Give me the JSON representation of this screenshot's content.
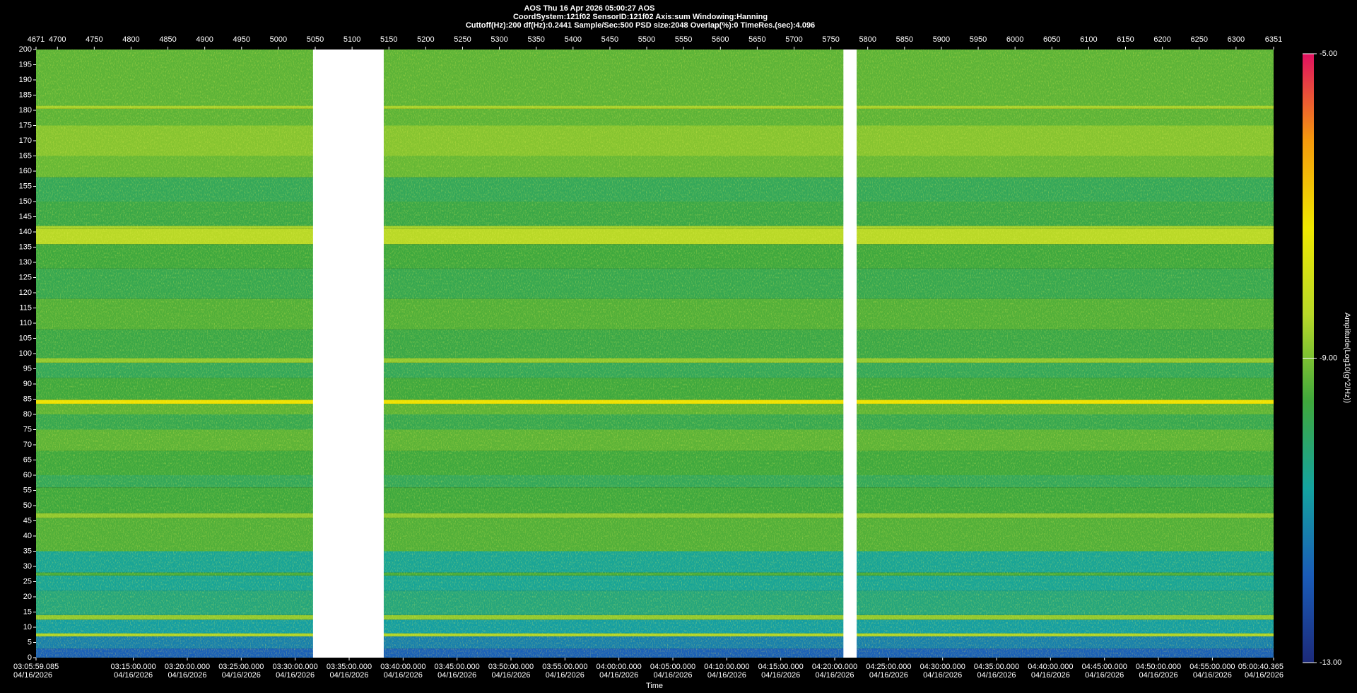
{
  "chart_data": {
    "type": "spectrogram",
    "title": "AOS  Thu 16 Apr 2026 05:00:27  AOS",
    "subtitle": "CoordSystem:121f02   SensorID:121f02   Axis:sum   Windowing:Hanning",
    "settings_line": "Cuttoff(Hz):200     df(Hz):0.2441     Sample/Sec:500     PSD size:2048     Overlap(%):0     TimeRes.(sec):4.096",
    "xlim": [
      4671,
      6351
    ],
    "xticks": [
      4671,
      4700,
      4750,
      4800,
      4850,
      4900,
      4950,
      5000,
      5050,
      5100,
      5150,
      5200,
      5250,
      5300,
      5350,
      5400,
      5450,
      5500,
      5550,
      5600,
      5650,
      5700,
      5750,
      5800,
      5850,
      5900,
      5950,
      6000,
      6050,
      6100,
      6150,
      6200,
      6250,
      6300,
      6351
    ],
    "ylim": [
      0,
      200
    ],
    "yticks": [
      0,
      5,
      10,
      15,
      20,
      25,
      30,
      35,
      40,
      45,
      50,
      55,
      60,
      65,
      70,
      75,
      80,
      85,
      90,
      95,
      100,
      105,
      110,
      115,
      120,
      125,
      130,
      135,
      140,
      145,
      150,
      155,
      160,
      165,
      170,
      175,
      180,
      185,
      190,
      195,
      200
    ],
    "x_label": "Time",
    "tlim": [
      "03:05:59.085",
      "05:00:40.365"
    ],
    "time_ticks": [
      {
        "time": "03:05:59.085",
        "date": "04/16/2026"
      },
      {
        "time": "03:15:00.000",
        "date": "04/16/2026"
      },
      {
        "time": "03:20:00.000",
        "date": "04/16/2026"
      },
      {
        "time": "03:25:00.000",
        "date": "04/16/2026"
      },
      {
        "time": "03:30:00.000",
        "date": "04/16/2026"
      },
      {
        "time": "03:35:00.000",
        "date": "04/16/2026"
      },
      {
        "time": "03:40:00.000",
        "date": "04/16/2026"
      },
      {
        "time": "03:45:00.000",
        "date": "04/16/2026"
      },
      {
        "time": "03:50:00.000",
        "date": "04/16/2026"
      },
      {
        "time": "03:55:00.000",
        "date": "04/16/2026"
      },
      {
        "time": "04:00:00.000",
        "date": "04/16/2026"
      },
      {
        "time": "04:05:00.000",
        "date": "04/16/2026"
      },
      {
        "time": "04:10:00.000",
        "date": "04/16/2026"
      },
      {
        "time": "04:15:00.000",
        "date": "04/16/2026"
      },
      {
        "time": "04:20:00.000",
        "date": "04/16/2026"
      },
      {
        "time": "04:25:00.000",
        "date": "04/16/2026"
      },
      {
        "time": "04:30:00.000",
        "date": "04/16/2026"
      },
      {
        "time": "04:35:00.000",
        "date": "04/16/2026"
      },
      {
        "time": "04:40:00.000",
        "date": "04/16/2026"
      },
      {
        "time": "04:45:00.000",
        "date": "04/16/2026"
      },
      {
        "time": "04:50:00.000",
        "date": "04/16/2026"
      },
      {
        "time": "04:55:00.000",
        "date": "04/16/2026"
      },
      {
        "time": "05:00:40.365",
        "date": "04/16/2026"
      }
    ],
    "gaps": [
      {
        "from": 5047,
        "to": 5143
      },
      {
        "from": 5767,
        "to": 5785
      }
    ],
    "bands": [
      {
        "from": 0,
        "to": 3,
        "value": -11.8
      },
      {
        "from": 3,
        "to": 7,
        "value": -11.3
      },
      {
        "from": 7,
        "to": 8,
        "value": -8.5
      },
      {
        "from": 8,
        "to": 12.5,
        "value": -10.8
      },
      {
        "from": 12.5,
        "to": 14,
        "value": -8.8
      },
      {
        "from": 14,
        "to": 22,
        "value": -10.3
      },
      {
        "from": 22,
        "to": 27,
        "value": -10.6
      },
      {
        "from": 27,
        "to": 28,
        "value": -9.5
      },
      {
        "from": 28,
        "to": 35,
        "value": -10.6
      },
      {
        "from": 35,
        "to": 46,
        "value": -9.4
      },
      {
        "from": 46,
        "to": 47.5,
        "value": -8.8
      },
      {
        "from": 47.5,
        "to": 56,
        "value": -9.6
      },
      {
        "from": 56,
        "to": 60,
        "value": -9.9
      },
      {
        "from": 60,
        "to": 68,
        "value": -9.6
      },
      {
        "from": 68,
        "to": 75,
        "value": -9.3
      },
      {
        "from": 75,
        "to": 80,
        "value": -9.8
      },
      {
        "from": 80,
        "to": 83.5,
        "value": -9.3
      },
      {
        "from": 83.5,
        "to": 84.8,
        "value": -7.2
      },
      {
        "from": 84.8,
        "to": 92,
        "value": -9.6
      },
      {
        "from": 92,
        "to": 97,
        "value": -9.9
      },
      {
        "from": 97,
        "to": 98.5,
        "value": -8.8
      },
      {
        "from": 98.5,
        "to": 108,
        "value": -9.7
      },
      {
        "from": 108,
        "to": 118,
        "value": -9.4
      },
      {
        "from": 118,
        "to": 128,
        "value": -9.8
      },
      {
        "from": 128,
        "to": 136,
        "value": -9.6
      },
      {
        "from": 136,
        "to": 141,
        "value": -8.4
      },
      {
        "from": 141,
        "to": 142,
        "value": -8.6
      },
      {
        "from": 142,
        "to": 150,
        "value": -9.7
      },
      {
        "from": 150,
        "to": 158,
        "value": -9.9
      },
      {
        "from": 158,
        "to": 165,
        "value": -9.2
      },
      {
        "from": 165,
        "to": 175,
        "value": -8.9
      },
      {
        "from": 175,
        "to": 180.5,
        "value": -9.3
      },
      {
        "from": 180.5,
        "to": 181.5,
        "value": -8.6
      },
      {
        "from": 181.5,
        "to": 200,
        "value": -9.3
      }
    ],
    "clim": [
      -13,
      -5
    ],
    "cticks": [
      {
        "value": -5,
        "label": "-5.00"
      },
      {
        "value": -9,
        "label": "-9.00"
      },
      {
        "value": -13,
        "label": "-13.00"
      }
    ],
    "colorbar_label": "Amplitude(Log10(g^2/Hz))",
    "colormap": [
      "#1c2a7a",
      "#1a5cb8",
      "#14a3a0",
      "#3fa83c",
      "#b8d828",
      "#f0e800",
      "#f59a0c",
      "#e01060"
    ]
  }
}
